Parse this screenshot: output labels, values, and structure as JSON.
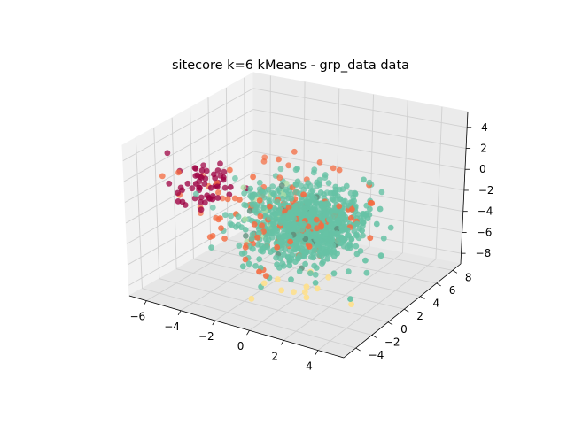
{
  "chart_data": {
    "type": "scatter",
    "projection": "3d",
    "title": "sitecore k=6 kMeans - grp_data data",
    "xlabel": "",
    "ylabel": "",
    "zlabel": "",
    "xlim": [
      -7,
      5.5
    ],
    "ylim": [
      -5.5,
      9
    ],
    "zlim": [
      -9,
      5.5
    ],
    "x_ticks": [
      -6,
      -4,
      -2,
      0,
      2,
      4
    ],
    "y_ticks": [
      -4,
      -2,
      0,
      2,
      4,
      6,
      8
    ],
    "z_ticks": [
      -8,
      -6,
      -4,
      -2,
      0,
      2,
      4
    ],
    "grid": true,
    "legend": "none",
    "n_clusters": 6,
    "clusters": [
      {
        "color": "#66c2a5",
        "center": [
          0.5,
          0.5,
          -2.0
        ],
        "spread": [
          1.5,
          1.7,
          1.5
        ],
        "count": 900
      },
      {
        "color": "#f46d43",
        "center": [
          -0.5,
          -0.5,
          -1.0
        ],
        "spread": [
          2.0,
          2.2,
          2.0
        ],
        "count": 120
      },
      {
        "color": "#9e0142",
        "center": [
          -4.5,
          -1.5,
          0.5
        ],
        "spread": [
          0.8,
          0.9,
          1.2
        ],
        "count": 55
      },
      {
        "color": "#fee08b",
        "center": [
          2.0,
          -2.5,
          -6.0
        ],
        "spread": [
          1.2,
          1.2,
          0.8
        ],
        "count": 12
      },
      {
        "color": "#abdda4",
        "center": [
          -1.5,
          0.5,
          -1.5
        ],
        "spread": [
          1.0,
          1.0,
          1.0
        ],
        "count": 25
      },
      {
        "color": "#5e8f7c",
        "center": [
          0.0,
          0.0,
          -2.0
        ],
        "spread": [
          1.6,
          1.6,
          1.4
        ],
        "count": 20
      }
    ]
  }
}
